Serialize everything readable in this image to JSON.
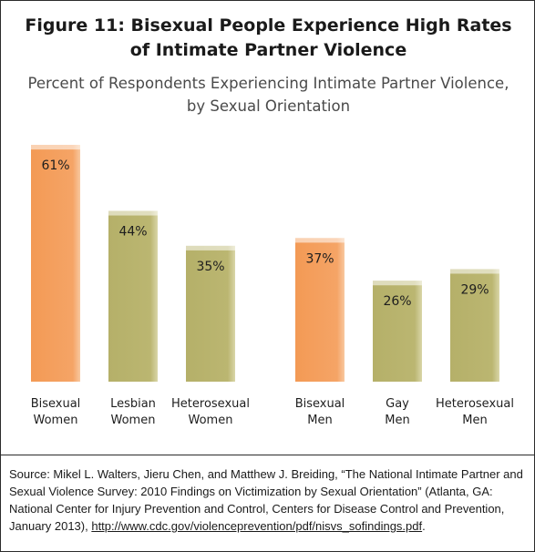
{
  "chart_data": {
    "type": "bar",
    "title": "Figure 11: Bisexual People Experience High Rates of Intimate Partner Violence",
    "subtitle": "Percent of Respondents Experiencing Intimate Partner Violence, by Sexual Orientation",
    "xlabel": "",
    "ylabel": "",
    "ylim": [
      0,
      65
    ],
    "grid": false,
    "categories": [
      [
        "Bisexual",
        "Women"
      ],
      [
        "Lesbian",
        "Women"
      ],
      [
        "Heterosexual",
        "Women"
      ],
      [
        "Bisexual",
        "Men"
      ],
      [
        "Gay",
        "Men"
      ],
      [
        "Heterosexual",
        "Men"
      ]
    ],
    "values": [
      61,
      44,
      35,
      37,
      26,
      29
    ],
    "value_labels": [
      "61%",
      "44%",
      "35%",
      "37%",
      "26%",
      "29%"
    ],
    "groups": [
      "Women",
      "Men"
    ],
    "colors": {
      "highlight": "#f39a55",
      "highlight_edge": "#f6c49a",
      "other": "#b5b069",
      "other_edge": "#d6d3a0",
      "top": "#ffffff"
    },
    "highlight_indices": [
      0,
      3
    ]
  },
  "source": {
    "text": "Source: Mikel L. Walters, Jieru Chen, and Matthew J. Breiding, “The National Intimate Partner and Sexual Violence Survey: 2010 Findings on Victimization by Sexual Orientation” (Atlanta, GA: National Center for Injury Prevention and Control, Centers for Disease Control and Prevention, January 2013), ",
    "url": "http://www.cdc.gov/violenceprevention/pdf/nisvs_sofindings.pdf",
    "end": "."
  }
}
